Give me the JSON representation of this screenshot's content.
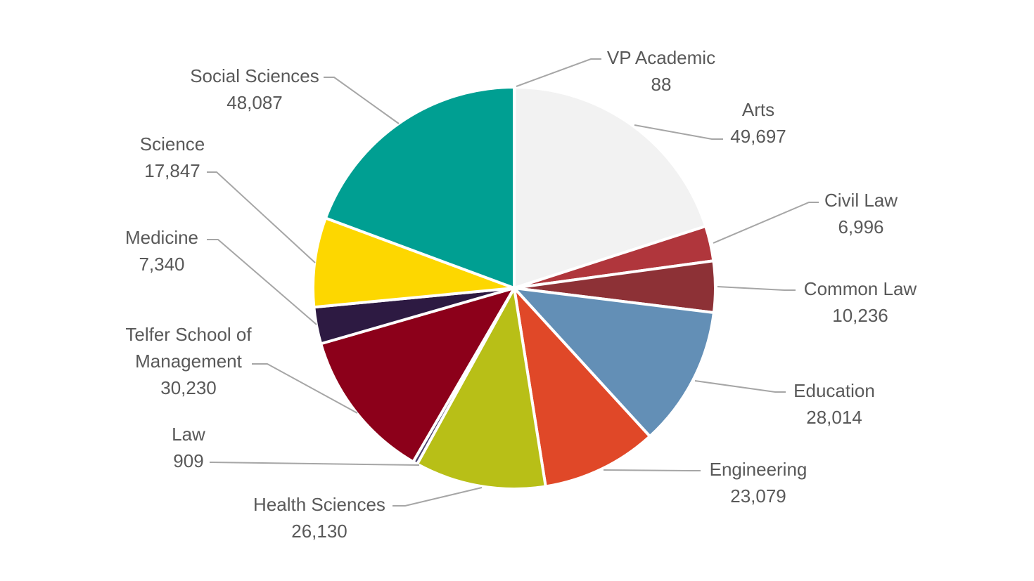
{
  "chart_data": {
    "type": "pie",
    "title": "",
    "start_angle_deg": 0,
    "direction": "clockwise",
    "slices": [
      {
        "label": "VP Academic",
        "value": 88,
        "value_label": "88",
        "color": "#f2f2f2"
      },
      {
        "label": "Arts",
        "value": 49697,
        "value_label": "49,697",
        "color": "#f2f2f2"
      },
      {
        "label": "Civil Law",
        "value": 6996,
        "value_label": "6,996",
        "color": "#b0363c"
      },
      {
        "label": "Common Law",
        "value": 10236,
        "value_label": "10,236",
        "color": "#8d3136"
      },
      {
        "label": "Education",
        "value": 28014,
        "value_label": "28,014",
        "color": "#638fb6"
      },
      {
        "label": "Engineering",
        "value": 23079,
        "value_label": "23,079",
        "color": "#e04828"
      },
      {
        "label": "Health Sciences",
        "value": 26130,
        "value_label": "26,130",
        "color": "#b8bf17"
      },
      {
        "label": "Law",
        "value": 909,
        "value_label": "909",
        "color": "#4a3f6b"
      },
      {
        "label": "Telfer School of Management",
        "value": 30230,
        "value_label": "30,230",
        "color": "#8c001a"
      },
      {
        "label": "Medicine",
        "value": 7340,
        "value_label": "7,340",
        "color": "#2d1a42"
      },
      {
        "label": "Science",
        "value": 17847,
        "value_label": "17,847",
        "color": "#fdd700"
      },
      {
        "label": "Social Sciences",
        "value": 48087,
        "value_label": "48,087",
        "color": "#009f92"
      }
    ]
  }
}
